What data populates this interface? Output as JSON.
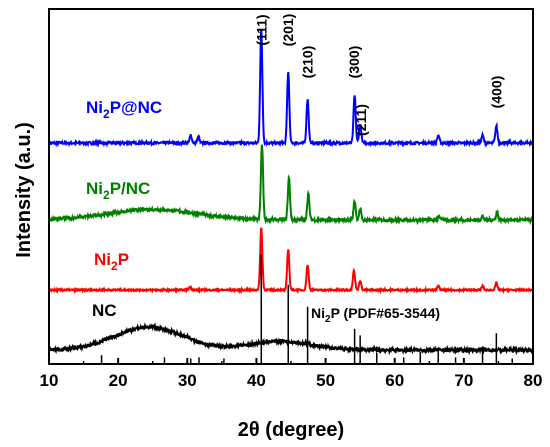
{
  "chart_data": {
    "type": "line",
    "xlabel": "2θ (degree)",
    "ylabel": "Intensity (a.u.)",
    "xlim": [
      10,
      80
    ],
    "x_ticks": [
      "10",
      "20",
      "30",
      "40",
      "50",
      "60",
      "70",
      "80"
    ],
    "grid": false,
    "series": [
      {
        "label_main": "Ni",
        "label_sub": "2",
        "label_rest": "P@NC",
        "color": "#0000ff",
        "baseline": 0,
        "noise": 0.25,
        "peaks": [
          {
            "x": 30.5,
            "h": 0.8
          },
          {
            "x": 31.6,
            "h": 0.6
          },
          {
            "x": 40.7,
            "h": 12.0
          },
          {
            "x": 44.6,
            "h": 7.5
          },
          {
            "x": 47.4,
            "h": 4.6
          },
          {
            "x": 54.2,
            "h": 5.0
          },
          {
            "x": 55.0,
            "h": 2.0
          },
          {
            "x": 66.3,
            "h": 0.8
          },
          {
            "x": 72.7,
            "h": 0.8
          },
          {
            "x": 74.7,
            "h": 1.8
          }
        ]
      },
      {
        "label_main": "Ni",
        "label_sub": "2",
        "label_rest": "P/NC",
        "color": "#008000",
        "baseline": 0,
        "noise": 0.35,
        "hump": {
          "x": 25,
          "h": 1.2,
          "w": 9
        },
        "peaks": [
          {
            "x": 40.8,
            "h": 8.5
          },
          {
            "x": 44.7,
            "h": 4.8
          },
          {
            "x": 47.5,
            "h": 3.0
          },
          {
            "x": 54.2,
            "h": 2.2
          },
          {
            "x": 55.0,
            "h": 1.2
          },
          {
            "x": 66.4,
            "h": 0.5
          },
          {
            "x": 72.7,
            "h": 0.4
          },
          {
            "x": 74.8,
            "h": 0.9
          }
        ]
      },
      {
        "label_main": "Ni",
        "label_sub": "2",
        "label_rest": "P",
        "color": "#ff0000",
        "baseline": 0,
        "noise": 0.2,
        "peaks": [
          {
            "x": 30.4,
            "h": 0.4
          },
          {
            "x": 40.7,
            "h": 8.0
          },
          {
            "x": 44.6,
            "h": 5.2
          },
          {
            "x": 47.4,
            "h": 3.2
          },
          {
            "x": 54.1,
            "h": 2.6
          },
          {
            "x": 55.0,
            "h": 1.2
          },
          {
            "x": 66.3,
            "h": 0.5
          },
          {
            "x": 72.7,
            "h": 0.5
          },
          {
            "x": 74.7,
            "h": 0.9
          }
        ]
      },
      {
        "label_main": "NC",
        "label_sub": "",
        "label_rest": "",
        "color": "#000000",
        "baseline": 0,
        "noise": 0.35,
        "hump": {
          "x": 24.5,
          "h": 2.3,
          "w": 7
        },
        "hump2": {
          "x": 43.5,
          "h": 0.9,
          "w": 6
        },
        "peaks": []
      }
    ],
    "reference": {
      "label_main": "Ni",
      "label_sub": "2",
      "label_rest": "P (PDF#65-3544)",
      "color": "#000000",
      "lines": [
        {
          "x": 17.6,
          "h": 0.08
        },
        {
          "x": 26.7,
          "h": 0.06
        },
        {
          "x": 30.5,
          "h": 0.05
        },
        {
          "x": 31.7,
          "h": 0.06
        },
        {
          "x": 35.3,
          "h": 0.05
        },
        {
          "x": 40.7,
          "h": 1.0
        },
        {
          "x": 44.6,
          "h": 0.72
        },
        {
          "x": 47.4,
          "h": 0.52
        },
        {
          "x": 54.2,
          "h": 0.32
        },
        {
          "x": 55.0,
          "h": 0.26
        },
        {
          "x": 57.4,
          "h": 0.1
        },
        {
          "x": 61.3,
          "h": 0.06
        },
        {
          "x": 63.7,
          "h": 0.11
        },
        {
          "x": 66.3,
          "h": 0.13
        },
        {
          "x": 68.8,
          "h": 0.06
        },
        {
          "x": 72.7,
          "h": 0.16
        },
        {
          "x": 74.7,
          "h": 0.28
        },
        {
          "x": 77.0,
          "h": 0.05
        }
      ]
    },
    "annotations": [
      {
        "text": "(111)",
        "x": 40.7
      },
      {
        "text": "(201)",
        "x": 44.6
      },
      {
        "text": "(210)",
        "x": 47.4
      },
      {
        "text": "(300)",
        "x": 54.1
      },
      {
        "text": "(211)",
        "x": 55.1
      },
      {
        "text": "(400)",
        "x": 74.7
      }
    ]
  }
}
